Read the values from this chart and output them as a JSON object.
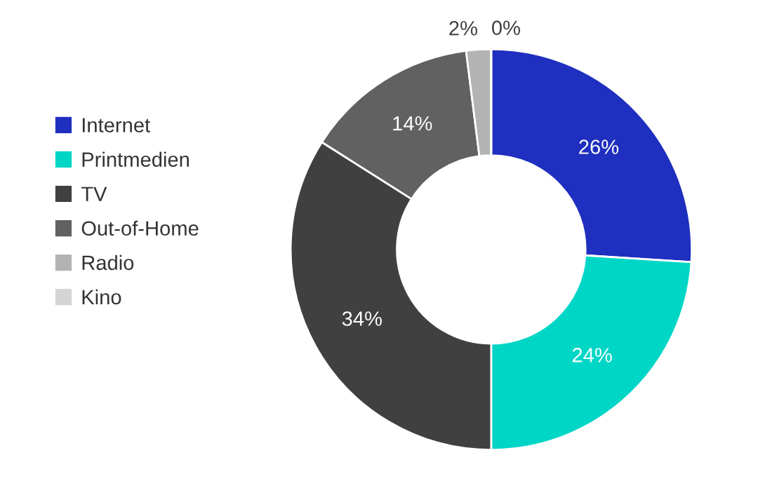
{
  "chart_data": {
    "type": "donut",
    "categories": [
      "Internet",
      "Printmedien",
      "TV",
      "Out-of-Home",
      "Radio",
      "Kino"
    ],
    "values": [
      26,
      24,
      34,
      14,
      2,
      0
    ],
    "value_labels": [
      "26%",
      "24%",
      "34%",
      "14%",
      "2%",
      "0%"
    ],
    "colors": [
      "#1f2fbf",
      "#00d6c6",
      "#404040",
      "#616161",
      "#b3b3b3",
      "#d4d4d4"
    ],
    "legend": "left"
  }
}
